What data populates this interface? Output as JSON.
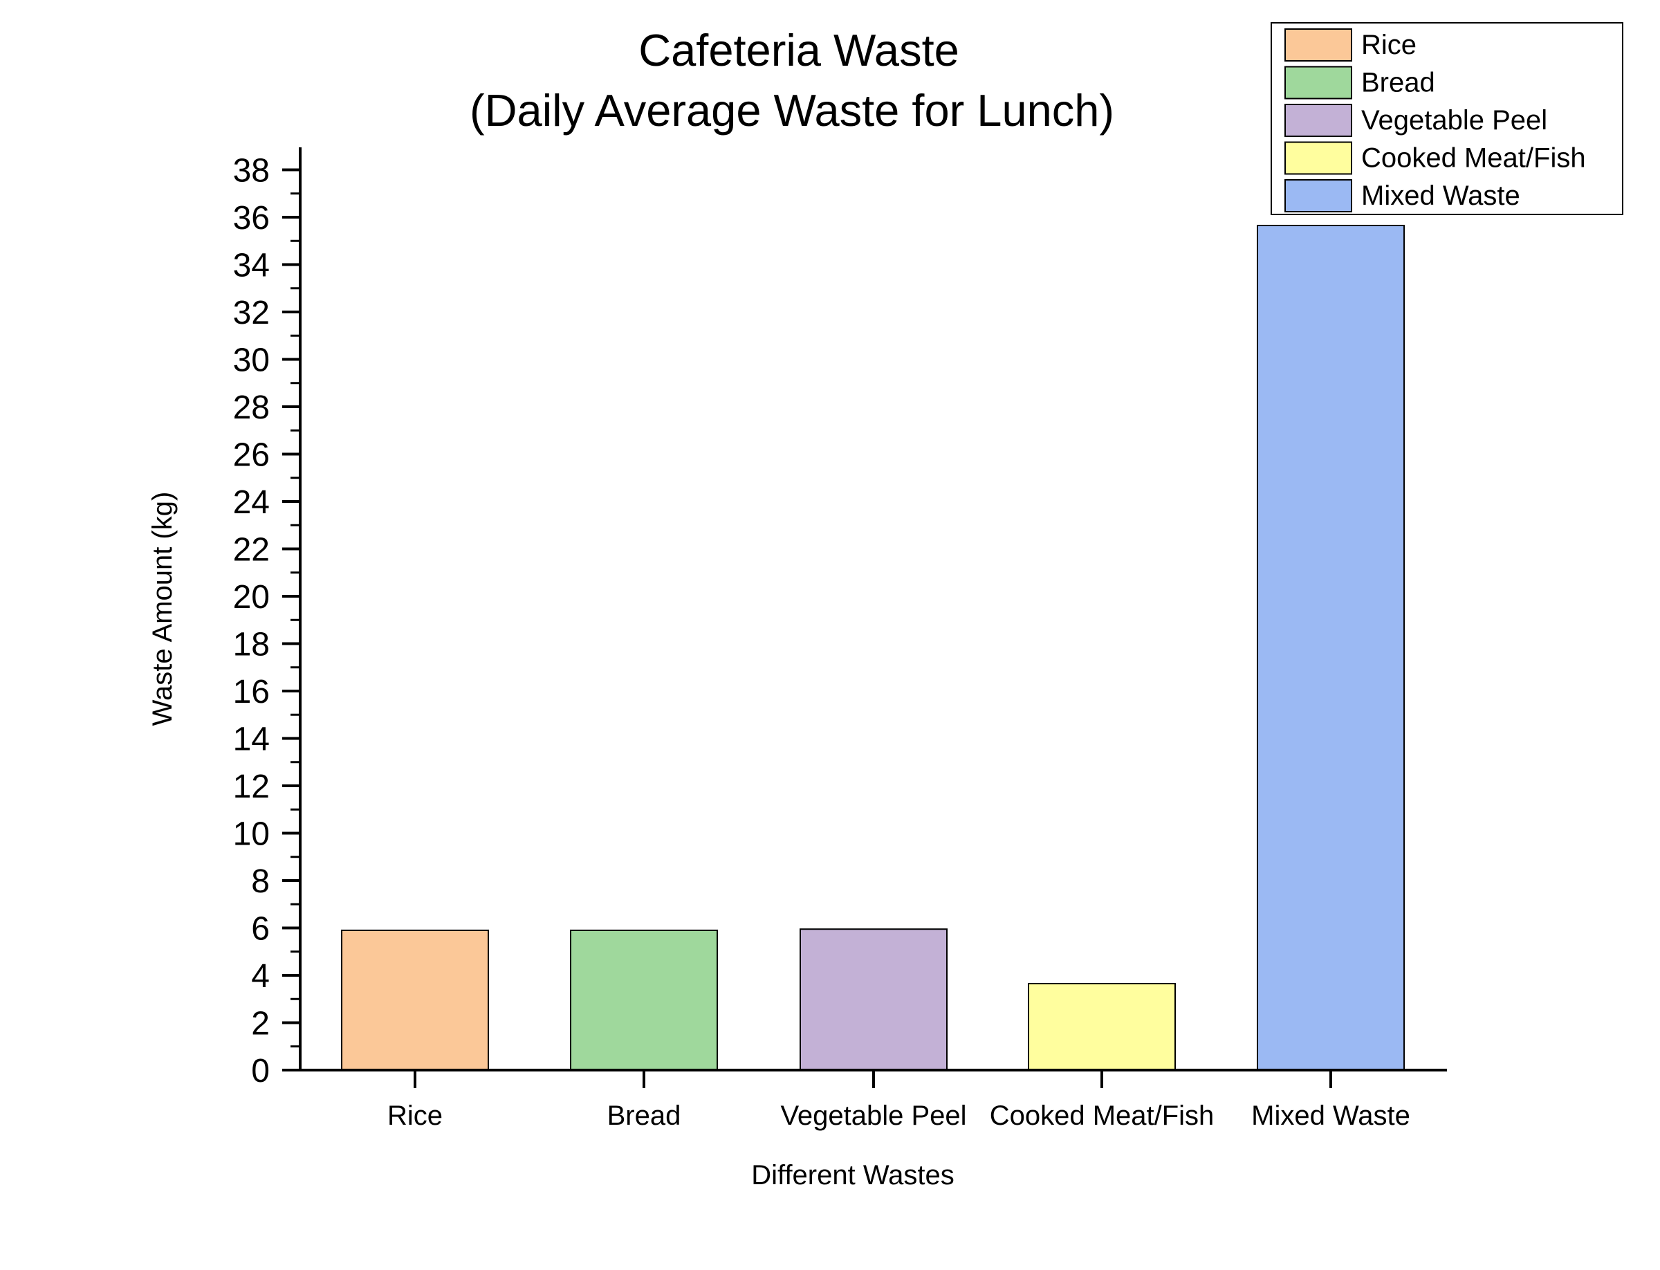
{
  "chart_data": {
    "type": "bar",
    "title": "Cafeteria Waste",
    "subtitle": "(Daily Average Waste for Lunch)",
    "xlabel": "Different Wastes",
    "ylabel": "Waste Amount (kg)",
    "categories": [
      "Rice",
      "Bread",
      "Vegetable Peel",
      "Cooked Meat/Fish",
      "Mixed Waste"
    ],
    "values": [
      5.9,
      5.9,
      5.95,
      3.65,
      35.65
    ],
    "colors": [
      "#fbc898",
      "#9fd89c",
      "#c3b1d6",
      "#fffe9e",
      "#9bb9f3"
    ],
    "ylim": [
      0,
      39
    ],
    "yticks": [
      "0",
      "2",
      "4",
      "6",
      "8",
      "10",
      "12",
      "14",
      "16",
      "18",
      "20",
      "22",
      "24",
      "26",
      "28",
      "30",
      "32",
      "34",
      "36",
      "38"
    ],
    "legend": {
      "position": "top-right",
      "entries": [
        "Rice",
        "Bread",
        "Vegetable Peel",
        "Cooked Meat/Fish",
        "Mixed Waste"
      ]
    },
    "grid": false
  }
}
